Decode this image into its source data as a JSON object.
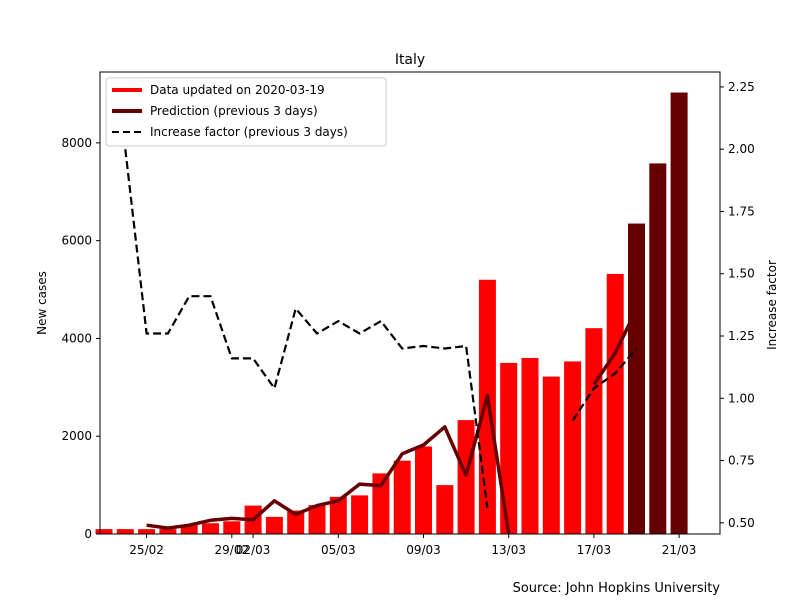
{
  "chart_data": {
    "type": "bar",
    "title": "Italy",
    "ylabel_left": "New cases",
    "ylabel_right": "Increase factor",
    "source": "Source: John Hopkins University",
    "x_tick_labels": [
      "25/02",
      "29/02",
      "02/03",
      "05/03",
      "09/03",
      "13/03",
      "17/03",
      "21/03"
    ],
    "x_tick_index": [
      2,
      6,
      7,
      11,
      15,
      19,
      23,
      27
    ],
    "left_yticks": [
      0,
      2000,
      4000,
      6000,
      8000
    ],
    "left_ylim": [
      0,
      9450
    ],
    "right_yticks": [
      "0.50",
      "0.75",
      "1.00",
      "1.25",
      "1.50",
      "1.75",
      "2.00",
      "2.25"
    ],
    "right_ylim": [
      0.455,
      2.31
    ],
    "legend": {
      "placement": "upper-left",
      "entries": [
        {
          "label": "Data updated on 2020-03-19",
          "color": "#ff0000",
          "style": "solid-thick"
        },
        {
          "label": "Prediction (previous 3 days)",
          "color": "#660000",
          "style": "solid-thick"
        },
        {
          "label": "Increase factor (previous 3 days)",
          "color": "#000000",
          "style": "dashed"
        }
      ]
    },
    "colors": {
      "data": "#ff0000",
      "prediction": "#660000",
      "increase": "#000000"
    },
    "bars_data": [
      100,
      100,
      100,
      100,
      180,
      220,
      260,
      580,
      350,
      480,
      590,
      760,
      790,
      1240,
      1500,
      1790,
      1000,
      2330,
      5200,
      3500,
      3600,
      3220,
      3530,
      4210,
      5320
    ],
    "bars_prediction_start": 25,
    "bars_prediction": [
      6350,
      7580,
      9030
    ],
    "prediction_line": [
      [
        2,
        180
      ],
      [
        3,
        120
      ],
      [
        4,
        180
      ],
      [
        5,
        280
      ],
      [
        6,
        320
      ],
      [
        7,
        290
      ],
      [
        8,
        680
      ],
      [
        9,
        400
      ],
      [
        10,
        580
      ],
      [
        11,
        680
      ],
      [
        12,
        1020
      ],
      [
        13,
        990
      ],
      [
        14,
        1640
      ],
      [
        15,
        1820
      ],
      [
        16,
        2190
      ],
      [
        17,
        1200
      ],
      [
        18,
        2830
      ],
      [
        19,
        0
      ],
      [
        20,
        null
      ],
      [
        21,
        null
      ],
      [
        22,
        null
      ],
      [
        23,
        3060
      ],
      [
        24,
        3700
      ],
      [
        25,
        4600
      ]
    ],
    "increase_line": [
      [
        1,
        2.0
      ],
      [
        2,
        1.26
      ],
      [
        3,
        1.26
      ],
      [
        4,
        1.41
      ],
      [
        5,
        1.41
      ],
      [
        6,
        1.16
      ],
      [
        7,
        1.16
      ],
      [
        8,
        1.04
      ],
      [
        9,
        1.36
      ],
      [
        10,
        1.26
      ],
      [
        11,
        1.31
      ],
      [
        12,
        1.26
      ],
      [
        13,
        1.31
      ],
      [
        14,
        1.2
      ],
      [
        15,
        1.21
      ],
      [
        16,
        1.2
      ],
      [
        17,
        1.21
      ],
      [
        18,
        0.56
      ],
      [
        19,
        null
      ],
      [
        20,
        null
      ],
      [
        21,
        null
      ],
      [
        22,
        0.91
      ],
      [
        23,
        1.04
      ],
      [
        24,
        1.1
      ],
      [
        25,
        1.2
      ]
    ]
  }
}
